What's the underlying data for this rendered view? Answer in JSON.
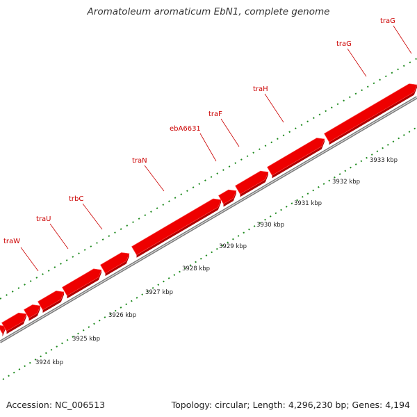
{
  "header": {
    "title": "Aromatoleum aromaticum EbN1, complete genome"
  },
  "footer": {
    "accession": "Accession: NC_006513",
    "summary": "Topology: circular; Length: 4,296,230 bp; Genes: 4,194"
  },
  "colors": {
    "gene_fill": "#ee0000",
    "gene_side": "#b00000",
    "gene_label": "#cc0000",
    "backbone": "#7a7a7a",
    "dots": "#1e8a1e"
  },
  "genes": [
    {
      "name": "traW",
      "label": "traW"
    },
    {
      "name": "traU",
      "label": "traU"
    },
    {
      "name": "trbC",
      "label": "trbC"
    },
    {
      "name": "traN",
      "label": "traN"
    },
    {
      "name": "ebA6631",
      "label": "ebA6631"
    },
    {
      "name": "traF",
      "label": "traF"
    },
    {
      "name": "traH",
      "label": "traH"
    },
    {
      "name": "traG",
      "label": "traG"
    },
    {
      "name": "traG-2",
      "label": "traG"
    }
  ],
  "ticks": [
    {
      "name": "3924",
      "label": "3924 kbp"
    },
    {
      "name": "3925",
      "label": "3925 kbp"
    },
    {
      "name": "3926",
      "label": "3926 kbp"
    },
    {
      "name": "3927",
      "label": "3927 kbp"
    },
    {
      "name": "3928",
      "label": "3928 kbp"
    },
    {
      "name": "3929",
      "label": "3929 kbp"
    },
    {
      "name": "3930",
      "label": "3930 kbp"
    },
    {
      "name": "3931",
      "label": "3931 kbp"
    },
    {
      "name": "3932",
      "label": "3932 kbp"
    },
    {
      "name": "3933",
      "label": "3933 kbp"
    }
  ]
}
